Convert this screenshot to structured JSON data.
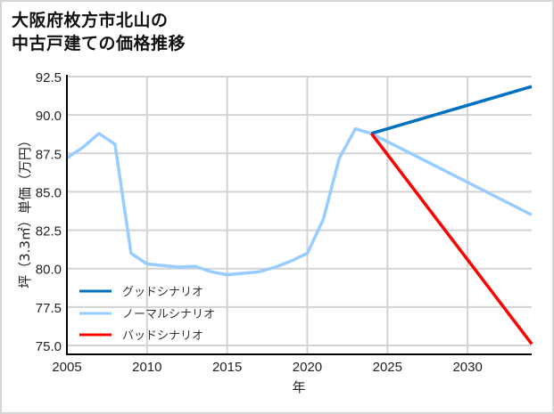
{
  "title": {
    "line1": "大阪府枚方市北山の",
    "line2": "中古戸建ての価格推移"
  },
  "colors": {
    "good": "#0070c0",
    "normal": "#99ccff",
    "bad": "#ff0000",
    "grid": "#d3d3d3",
    "axis": "#000000"
  },
  "chart_data": {
    "type": "line",
    "title": "大阪府枚方市北山の中古戸建ての価格推移",
    "xlabel": "年",
    "ylabel": "坪（3.3㎡）単価（万円）",
    "xlim": [
      2005,
      2034
    ],
    "ylim": [
      74.4,
      92.5
    ],
    "xticks": [
      2005,
      2010,
      2015,
      2020,
      2025,
      2030
    ],
    "yticks": [
      75.0,
      77.5,
      80.0,
      82.5,
      85.0,
      87.5,
      90.0,
      92.5
    ],
    "ytick_labels": [
      "75.0",
      "77.5",
      "80.0",
      "82.5",
      "85.0",
      "87.5",
      "90.0",
      "92.5"
    ],
    "grid": true,
    "legend_position": "lower left",
    "series": [
      {
        "name": "グッドシナリオ",
        "color": "#0070c0",
        "x": [
          2024,
          2034
        ],
        "y": [
          88.8,
          91.85
        ]
      },
      {
        "name": "ノーマルシナリオ",
        "color": "#99ccff",
        "x": [
          2005,
          2006,
          2007,
          2008,
          2009,
          2010,
          2011,
          2012,
          2013,
          2014,
          2015,
          2016,
          2017,
          2018,
          2019,
          2020,
          2021,
          2022,
          2023,
          2024,
          2034
        ],
        "y": [
          87.2,
          87.9,
          88.8,
          88.1,
          81.0,
          80.3,
          80.2,
          80.1,
          80.15,
          79.8,
          79.6,
          79.7,
          79.8,
          80.1,
          80.5,
          81.0,
          83.2,
          87.2,
          89.1,
          88.8,
          83.5
        ]
      },
      {
        "name": "バッドシナリオ",
        "color": "#ff0000",
        "x": [
          2024,
          2034
        ],
        "y": [
          88.8,
          75.1
        ]
      }
    ]
  }
}
